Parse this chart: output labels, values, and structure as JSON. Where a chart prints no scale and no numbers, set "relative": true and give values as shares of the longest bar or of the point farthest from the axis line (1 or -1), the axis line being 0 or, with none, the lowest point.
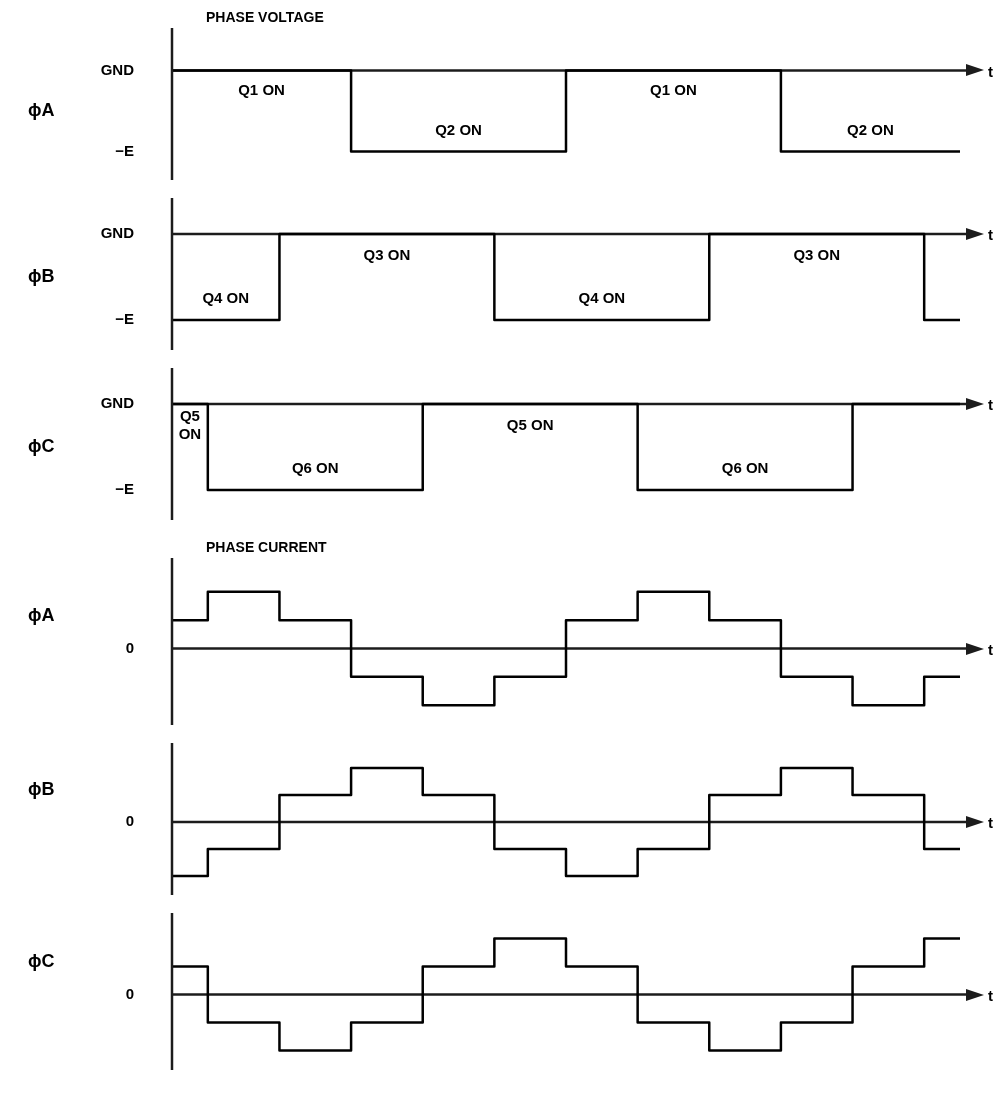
{
  "chart_data": [
    {
      "type": "step",
      "title": "PHASE VOLTAGE",
      "ylabel": "ϕA",
      "xlabel": "t",
      "categories": [
        null,
        null,
        null,
        null,
        null,
        null,
        null,
        null,
        null,
        null,
        null,
        null
      ],
      "values": [
        0,
        0,
        0,
        -1,
        -1,
        -1,
        0,
        0,
        0,
        -1,
        -1,
        -1
      ],
      "color": "#000000",
      "relative": true,
      "marker": "none",
      "annotations": [
        "GND",
        "−E",
        "Q1 ON",
        "Q2 ON",
        "Q1 ON",
        "Q2 ON"
      ]
    },
    {
      "type": "step",
      "ylabel": "ϕB",
      "xlabel": "t",
      "categories": [
        null,
        null,
        null,
        null,
        null,
        null,
        null,
        null,
        null,
        null,
        null,
        null
      ],
      "values": [
        -1,
        -1,
        0,
        0,
        0,
        -1,
        -1,
        -1,
        0,
        0,
        0,
        -1
      ],
      "color": "#000000",
      "relative": true,
      "marker": "none",
      "annotations": [
        "GND",
        "−E",
        "Q4 ON",
        "Q3 ON",
        "Q4 ON",
        "Q3 ON"
      ]
    },
    {
      "type": "step",
      "ylabel": "ϕC",
      "xlabel": "t",
      "categories": [
        null,
        null,
        null,
        null,
        null,
        null,
        null,
        null,
        null,
        null,
        null,
        null
      ],
      "values": [
        0,
        -1,
        -1,
        -1,
        0,
        0,
        0,
        -1,
        -1,
        -1,
        0,
        0
      ],
      "color": "#000000",
      "relative": true,
      "marker": "none",
      "annotations": [
        "GND",
        "−E",
        "Q5 ON",
        "Q6 ON",
        "Q5 ON",
        "Q6 ON"
      ]
    },
    {
      "type": "step",
      "title": "PHASE CURRENT",
      "ylabel": "ϕA",
      "xlabel": "t",
      "categories": [
        null,
        null,
        null,
        null,
        null,
        null,
        null,
        null,
        null,
        null,
        null,
        null
      ],
      "values": [
        0.5,
        1,
        0.5,
        -0.5,
        -1,
        -0.5,
        0.5,
        1,
        0.5,
        -0.5,
        -1,
        -0.5
      ],
      "color": "#000000",
      "relative": true,
      "marker": "none",
      "annotations": [
        "0"
      ]
    },
    {
      "type": "step",
      "ylabel": "ϕB",
      "xlabel": "t",
      "categories": [
        null,
        null,
        null,
        null,
        null,
        null,
        null,
        null,
        null,
        null,
        null,
        null
      ],
      "values": [
        -1,
        -0.5,
        0.5,
        1,
        0.5,
        -0.5,
        -1,
        -0.5,
        0.5,
        1,
        0.5,
        -0.5
      ],
      "color": "#000000",
      "relative": true,
      "marker": "none",
      "annotations": [
        "0"
      ]
    },
    {
      "type": "step",
      "ylabel": "ϕC",
      "xlabel": "t",
      "categories": [
        null,
        null,
        null,
        null,
        null,
        null,
        null,
        null,
        null,
        null,
        null,
        null
      ],
      "values": [
        0.5,
        -0.5,
        -1,
        -0.5,
        0.5,
        1,
        0.5,
        -0.5,
        -1,
        -0.5,
        0.5,
        1
      ],
      "color": "#000000",
      "relative": true,
      "marker": "none",
      "annotations": [
        "0"
      ]
    }
  ]
}
